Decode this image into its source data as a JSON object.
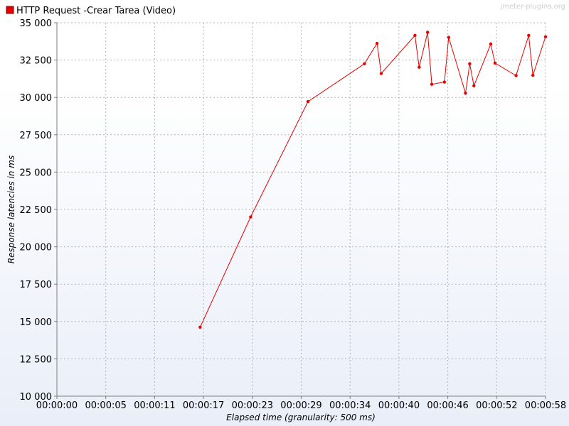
{
  "watermark": "jmeter-plugins.org",
  "colors": {
    "series": "#e60000",
    "grid": "#b4b4b4",
    "axis": "#7f7f7f",
    "text": "#000000",
    "watermark": "#cfcfcf"
  },
  "chart_data": {
    "type": "line",
    "title": "",
    "xlabel": "Elapsed time (granularity: 500 ms)",
    "ylabel": "Response latencies in ms",
    "grid": true,
    "legend_position": "top-left",
    "xlim": [
      0,
      58
    ],
    "ylim": [
      10000,
      35000
    ],
    "x_ticks": [
      0,
      5.8,
      11.6,
      17.4,
      23.2,
      29.0,
      34.8,
      40.6,
      46.4,
      52.2,
      58.0
    ],
    "x_tick_labels": [
      "00:00:00",
      "00:00:05",
      "00:00:11",
      "00:00:17",
      "00:00:23",
      "00:00:29",
      "00:00:34",
      "00:00:40",
      "00:00:46",
      "00:00:52",
      "00:00:58"
    ],
    "y_ticks": [
      10000,
      12500,
      15000,
      17500,
      20000,
      22500,
      25000,
      27500,
      30000,
      32500,
      35000
    ],
    "y_tick_labels": [
      "10 000",
      "12 500",
      "15 000",
      "17 500",
      "20 000",
      "22 500",
      "25 000",
      "27 500",
      "30 000",
      "32 500",
      "35 000"
    ],
    "series": [
      {
        "name": "HTTP Request -Crear Tarea  (Video)",
        "color": "#e60000",
        "points": [
          [
            17.0,
            14620
          ],
          [
            23.0,
            22000
          ],
          [
            29.8,
            29720
          ],
          [
            36.5,
            32250
          ],
          [
            38.0,
            33620
          ],
          [
            38.5,
            31600
          ],
          [
            42.5,
            34150
          ],
          [
            43.0,
            32020
          ],
          [
            44.0,
            34360
          ],
          [
            44.5,
            30880
          ],
          [
            46.0,
            31030
          ],
          [
            46.5,
            34020
          ],
          [
            48.5,
            30280
          ],
          [
            49.0,
            32250
          ],
          [
            49.5,
            30780
          ],
          [
            51.5,
            33580
          ],
          [
            52.0,
            32300
          ],
          [
            54.5,
            31460
          ],
          [
            56.0,
            34150
          ],
          [
            56.5,
            31480
          ],
          [
            58.0,
            34060
          ]
        ]
      }
    ]
  }
}
